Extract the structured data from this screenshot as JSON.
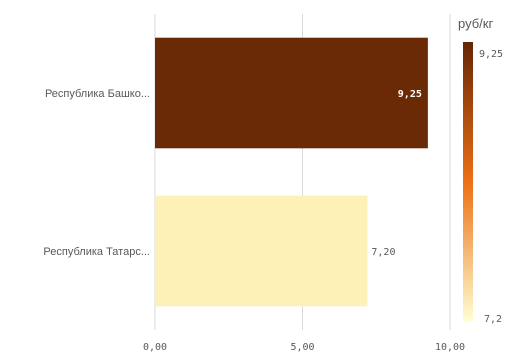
{
  "chart_data": {
    "type": "bar",
    "orientation": "horizontal",
    "categories": [
      "Республика Башко...",
      "Республика Татарс..."
    ],
    "values": [
      9.25,
      7.2
    ],
    "data_labels": [
      "9,25",
      "7,20"
    ],
    "xlim": [
      0,
      10
    ],
    "x_ticks": [
      0,
      5,
      10
    ],
    "x_tick_labels": [
      "0,00",
      "5,00",
      "10,00"
    ],
    "grid": "vertical",
    "legend": {
      "title": "руб/кг",
      "max_label": "9,25",
      "min_label": "7,2",
      "position": "right",
      "type": "color-gradient"
    },
    "colors": {
      "high": "#662506",
      "mid": "#ec7014",
      "low": "#ffffd4",
      "bar_high": "#6a2a06",
      "bar_low": "#fdf1b8",
      "grid": "#d9d9d9",
      "text": "#595959"
    }
  }
}
